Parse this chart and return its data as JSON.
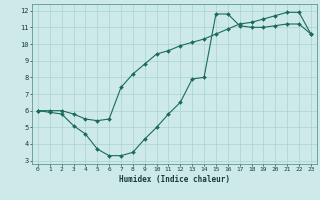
{
  "xlabel": "Humidex (Indice chaleur)",
  "bg_color": "#ceeae8",
  "grid_color": "#aad4d0",
  "line_color": "#1a6b5a",
  "xlim": [
    -0.5,
    23.5
  ],
  "ylim": [
    2.8,
    12.4
  ],
  "xticks": [
    0,
    1,
    2,
    3,
    4,
    5,
    6,
    7,
    8,
    9,
    10,
    11,
    12,
    13,
    14,
    15,
    16,
    17,
    18,
    19,
    20,
    21,
    22,
    23
  ],
  "yticks": [
    3,
    4,
    5,
    6,
    7,
    8,
    9,
    10,
    11,
    12
  ],
  "line1_x": [
    0,
    1,
    2,
    3,
    4,
    5,
    6,
    7,
    8,
    9,
    10,
    11,
    12,
    13,
    14,
    15,
    16,
    17,
    18,
    19,
    20,
    21,
    22,
    23
  ],
  "line1_y": [
    6.0,
    5.9,
    5.8,
    5.1,
    4.6,
    3.7,
    3.3,
    3.3,
    3.5,
    4.3,
    5.0,
    5.8,
    6.5,
    7.9,
    8.0,
    11.8,
    11.8,
    11.1,
    11.0,
    11.0,
    11.1,
    11.2,
    11.2,
    10.6
  ],
  "line2_x": [
    0,
    1,
    2,
    3,
    4,
    5,
    6,
    7,
    8,
    9,
    10,
    11,
    12,
    13,
    14,
    15,
    16,
    17,
    18,
    19,
    20,
    21,
    22,
    23
  ],
  "line2_y": [
    6.0,
    6.0,
    6.0,
    5.8,
    5.5,
    5.4,
    5.5,
    7.4,
    8.2,
    8.8,
    9.4,
    9.6,
    9.9,
    10.1,
    10.3,
    10.6,
    10.9,
    11.2,
    11.3,
    11.5,
    11.7,
    11.9,
    11.9,
    10.6
  ]
}
